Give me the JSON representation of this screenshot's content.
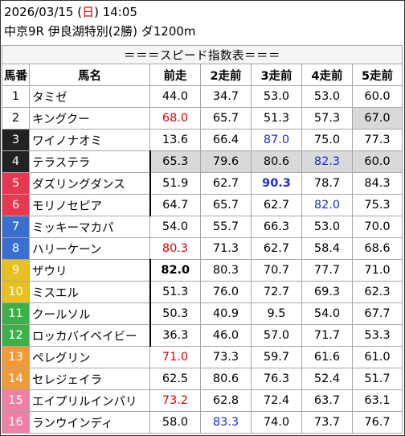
{
  "header": {
    "date_time_prefix": "2026/03/15 (",
    "weekday": "日",
    "date_time_suffix": ") 14:05",
    "race_info": "中京9R 伊良湖特別(2勝) ダ1200m"
  },
  "table": {
    "title": "＝＝＝スピード指数表＝＝＝",
    "columns": [
      "馬番",
      "馬名",
      "前走",
      "2走前",
      "3走前",
      "4走前",
      "5走前"
    ],
    "rows": [
      {
        "num": "1",
        "name": "タミゼ",
        "v": [
          "44.0",
          "34.7",
          "53.0",
          "53.0",
          "60.0"
        ]
      },
      {
        "num": "2",
        "name": "キングクー",
        "v": [
          "68.0",
          "65.7",
          "51.3",
          "57.3",
          "67.0"
        ]
      },
      {
        "num": "3",
        "name": "ワイノナオミ",
        "v": [
          "13.6",
          "66.4",
          "87.0",
          "75.0",
          "77.3"
        ]
      },
      {
        "num": "4",
        "name": "テラステラ",
        "v": [
          "65.3",
          "79.6",
          "80.6",
          "82.3",
          "60.0"
        ]
      },
      {
        "num": "5",
        "name": "ダズリングダンス",
        "v": [
          "51.9",
          "62.7",
          "90.3",
          "78.7",
          "84.3"
        ]
      },
      {
        "num": "6",
        "name": "モリノセピア",
        "v": [
          "64.7",
          "65.7",
          "62.7",
          "82.0",
          "75.3"
        ]
      },
      {
        "num": "7",
        "name": "ミッキーマカパ",
        "v": [
          "54.0",
          "55.7",
          "66.3",
          "53.0",
          "70.0"
        ]
      },
      {
        "num": "8",
        "name": "ハリーケーン",
        "v": [
          "80.3",
          "71.3",
          "62.7",
          "58.4",
          "68.6"
        ]
      },
      {
        "num": "9",
        "name": "ザウリ",
        "v": [
          "82.0",
          "80.3",
          "70.7",
          "77.7",
          "71.0"
        ]
      },
      {
        "num": "10",
        "name": "ミスエル",
        "v": [
          "51.3",
          "76.0",
          "72.7",
          "69.3",
          "62.3"
        ]
      },
      {
        "num": "11",
        "name": "クールソル",
        "v": [
          "50.3",
          "40.9",
          "9.5",
          "54.0",
          "67.7"
        ]
      },
      {
        "num": "12",
        "name": "ロッカバイベイビー",
        "v": [
          "36.3",
          "46.0",
          "57.0",
          "71.7",
          "53.3"
        ]
      },
      {
        "num": "13",
        "name": "ペレグリン",
        "v": [
          "71.0",
          "73.3",
          "59.7",
          "61.6",
          "61.0"
        ]
      },
      {
        "num": "14",
        "name": "セレジェイラ",
        "v": [
          "62.5",
          "80.6",
          "76.3",
          "52.4",
          "51.7"
        ]
      },
      {
        "num": "15",
        "name": "エイプリルインパリ",
        "v": [
          "73.2",
          "62.8",
          "72.4",
          "63.7",
          "63.1"
        ]
      },
      {
        "num": "16",
        "name": "ランウインディ",
        "v": [
          "58.0",
          "83.3",
          "74.0",
          "73.7",
          "76.7"
        ]
      }
    ]
  },
  "colors": {
    "frame_colors": [
      "#ffffff",
      "#ffffff",
      "#222222",
      "#222222",
      "#e8384f",
      "#e8384f",
      "#3a6fcf",
      "#3a6fcf",
      "#e8c020",
      "#e8c020",
      "#3cb04a",
      "#3cb04a",
      "#f29a38",
      "#f29a38",
      "#f07fa8",
      "#f07fa8"
    ],
    "frame_text": [
      "#000000",
      "#000000",
      "#ffffff",
      "#ffffff",
      "#ffffff",
      "#ffffff",
      "#ffffff",
      "#ffffff",
      "#ffffff",
      "#ffffff",
      "#ffffff",
      "#ffffff",
      "#ffffff",
      "#ffffff",
      "#ffffff",
      "#ffffff"
    ],
    "red": "#e00000",
    "blue": "#1a2bd6",
    "shade": "#d9d9d9"
  },
  "styles": {
    "red": [
      [
        1,
        0
      ],
      [
        7,
        0
      ],
      [
        12,
        0
      ],
      [
        14,
        0
      ]
    ],
    "blue": [
      [
        2,
        2
      ],
      [
        3,
        3
      ],
      [
        4,
        2
      ],
      [
        5,
        3
      ],
      [
        15,
        1
      ]
    ],
    "bold": [
      [
        4,
        2
      ],
      [
        8,
        0
      ]
    ],
    "shade": [
      [
        1,
        4
      ],
      [
        3,
        0
      ],
      [
        3,
        1
      ],
      [
        3,
        2
      ],
      [
        3,
        3
      ],
      [
        3,
        4
      ]
    ],
    "lbar_rows": [
      3,
      4,
      5,
      8,
      9,
      10,
      11
    ]
  }
}
